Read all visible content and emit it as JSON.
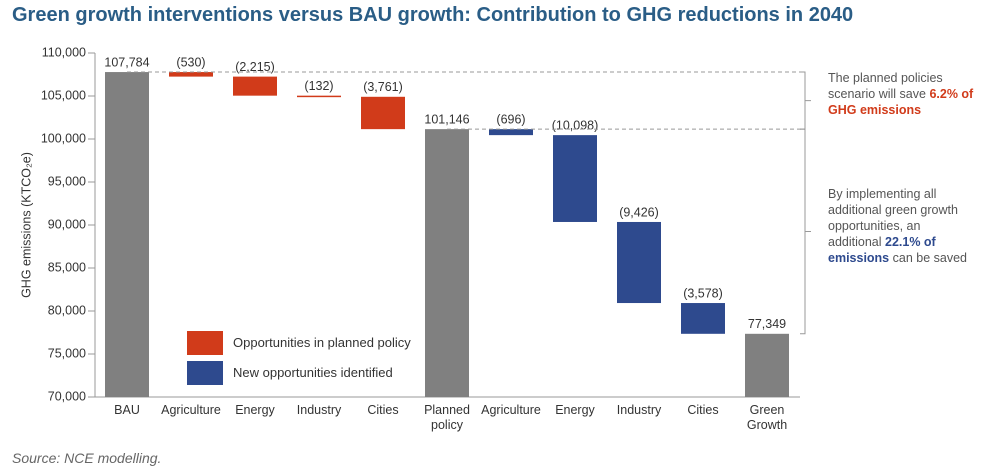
{
  "chart_data": {
    "type": "waterfall",
    "title": "Green growth interventions versus BAU growth: Contribution to GHG reductions in 2040",
    "y_label": "GHG emissions (KTCO₂e)",
    "categories": [
      "BAU",
      "Agriculture",
      "Energy",
      "Industry",
      "Cities",
      "Planned policy",
      "Agriculture",
      "Energy",
      "Industry",
      "Cities",
      "Green Growth"
    ],
    "values": [
      107784,
      -530,
      -2215,
      -132,
      -3761,
      101146,
      -696,
      -10098,
      -9426,
      -3578,
      77349
    ],
    "value_labels": [
      "107,784",
      "(530)",
      "(2,215)",
      "(132)",
      "(3,761)",
      "101,146",
      "(696)",
      "(10,098)",
      "(9,426)",
      "(3,578)",
      "77,349"
    ],
    "colors": [
      "#808080",
      "#d13b1a",
      "#d13b1a",
      "#d13b1a",
      "#d13b1a",
      "#808080",
      "#2e4a8e",
      "#2e4a8e",
      "#2e4a8e",
      "#2e4a8e",
      "#808080"
    ],
    "legend": [
      {
        "name": "Opportunities in planned policy",
        "color": "#d13b1a"
      },
      {
        "name": "New opportunities identified",
        "color": "#2e4a8e"
      }
    ],
    "ylim": [
      70000,
      110000
    ],
    "yticks": [
      {
        "value": 70000,
        "label": "70,000"
      },
      {
        "value": 75000,
        "label": "75,000"
      },
      {
        "value": 80000,
        "label": "80,000"
      },
      {
        "value": 85000,
        "label": "85,000"
      },
      {
        "value": 90000,
        "label": "90,000"
      },
      {
        "value": 95000,
        "label": "95,000"
      },
      {
        "value": 100000,
        "label": "100,000"
      },
      {
        "value": 105000,
        "label": "105,000"
      },
      {
        "value": 110000,
        "label": "110,000"
      }
    ],
    "annotations": [
      {
        "parts": [
          "The planned policies scenario will save ",
          "6.2% of GHG emissions"
        ],
        "color": "#d13b1a"
      },
      {
        "parts": [
          "By implementing all additional green growth opportunities, an additional ",
          "22.1% of emissions",
          " can be saved"
        ],
        "color": "#2e4a8e"
      }
    ],
    "source": "Source: NCE modelling."
  }
}
